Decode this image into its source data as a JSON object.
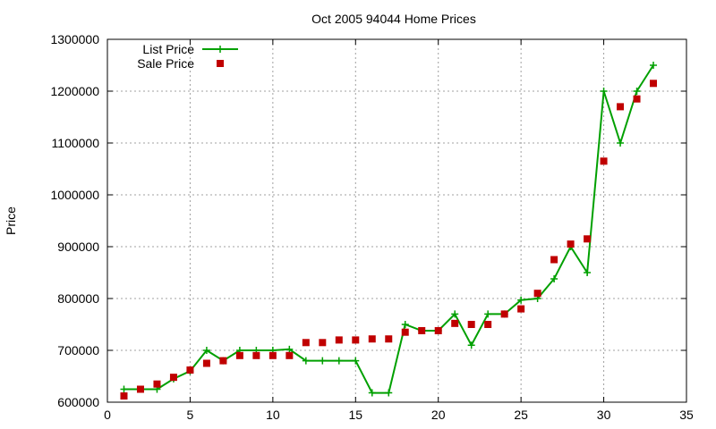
{
  "chart_data": {
    "type": "line",
    "title": "Oct 2005 94044 Home Prices",
    "xlabel": "",
    "ylabel": "Price",
    "xlim": [
      0,
      35
    ],
    "ylim": [
      600000,
      1300000
    ],
    "x_ticks": [
      "0",
      "5",
      "10",
      "15",
      "20",
      "25",
      "30",
      "35"
    ],
    "y_ticks": [
      "600000",
      "700000",
      "800000",
      "900000",
      "1000000",
      "1100000",
      "1200000",
      "1300000"
    ],
    "grid": true,
    "legend_position": "top-left",
    "series": [
      {
        "name": "List Price",
        "style": "line-with-plus-markers",
        "color": "#00a000",
        "x": [
          1,
          2,
          3,
          4,
          5,
          6,
          7,
          8,
          9,
          10,
          11,
          12,
          13,
          14,
          15,
          16,
          17,
          18,
          19,
          20,
          21,
          22,
          23,
          24,
          25,
          26,
          27,
          28,
          29,
          30,
          31,
          32,
          33
        ],
        "values": [
          625000,
          625000,
          625000,
          645000,
          660000,
          700000,
          680000,
          700000,
          700000,
          700000,
          702000,
          680000,
          680000,
          680000,
          680000,
          618000,
          618000,
          750000,
          738000,
          738000,
          770000,
          710000,
          770000,
          770000,
          797000,
          800000,
          838000,
          900000,
          850000,
          1200000,
          1100000,
          1200000,
          1250000
        ]
      },
      {
        "name": "Sale Price",
        "style": "square-markers",
        "color": "#c00000",
        "x": [
          1,
          2,
          3,
          4,
          5,
          6,
          7,
          8,
          9,
          10,
          11,
          12,
          13,
          14,
          15,
          16,
          17,
          18,
          19,
          20,
          21,
          22,
          23,
          24,
          25,
          26,
          27,
          28,
          29,
          30,
          31,
          32,
          33
        ],
        "values": [
          612000,
          625000,
          635000,
          648000,
          662000,
          675000,
          680000,
          690000,
          690000,
          690000,
          690000,
          715000,
          715000,
          720000,
          720000,
          722000,
          722000,
          735000,
          738000,
          738000,
          752000,
          750000,
          750000,
          770000,
          780000,
          810000,
          875000,
          905000,
          915000,
          1065000,
          1170000,
          1185000,
          1215000
        ]
      }
    ]
  }
}
